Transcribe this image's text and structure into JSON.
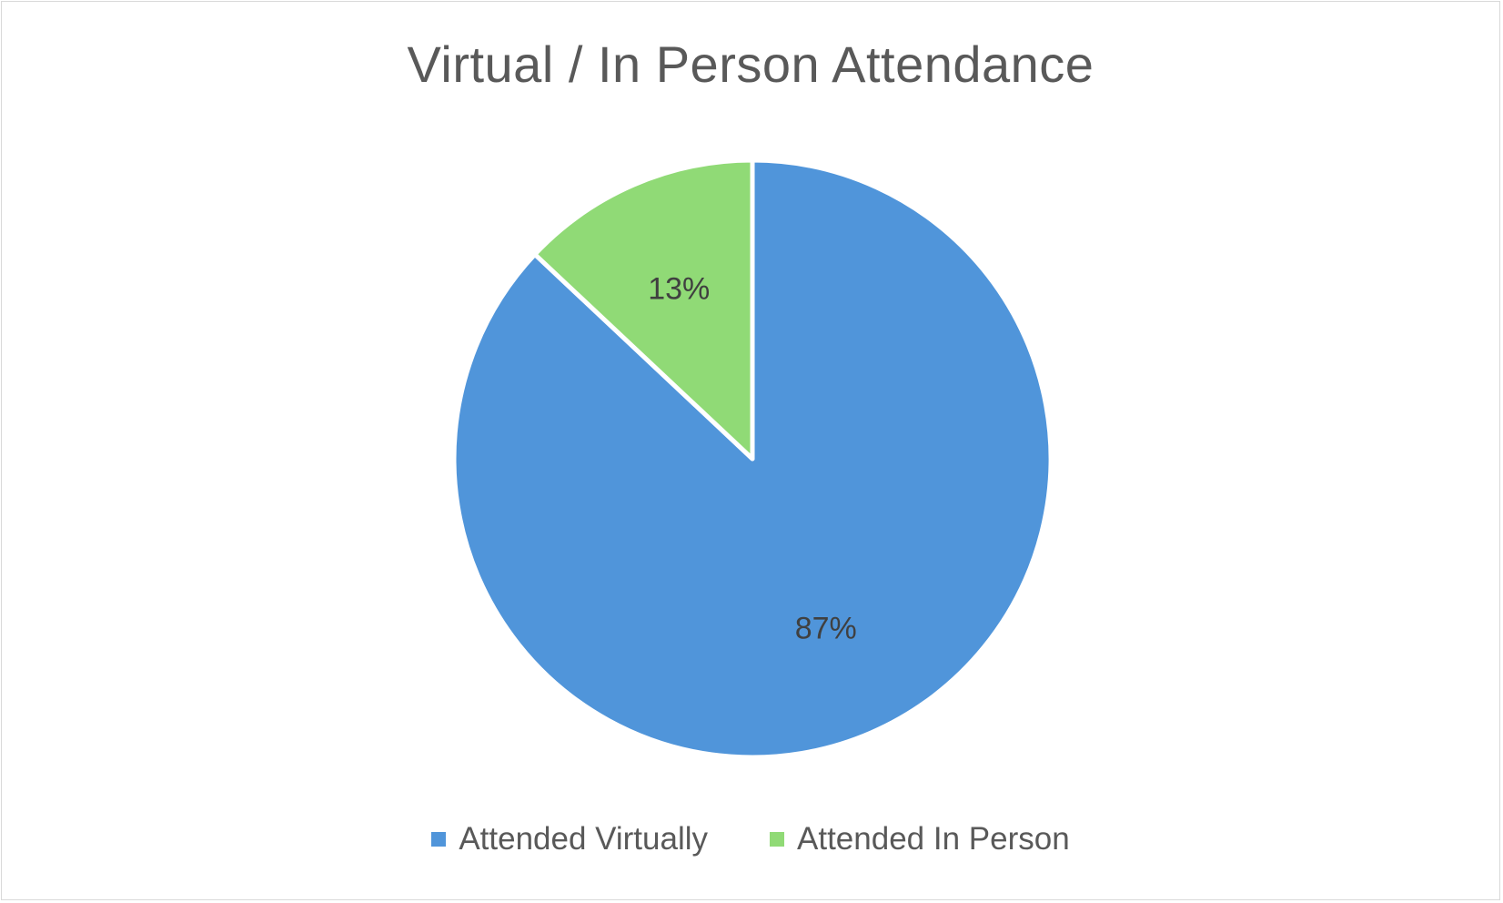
{
  "chart_data": {
    "type": "pie",
    "title": "Virtual / In Person Attendance",
    "categories": [
      "Attended Virtually",
      "Attended In Person"
    ],
    "values": [
      87,
      13
    ],
    "value_labels": [
      "87%",
      "13%"
    ],
    "colors": [
      "#5095da",
      "#90da76"
    ],
    "legend_position": "bottom"
  }
}
